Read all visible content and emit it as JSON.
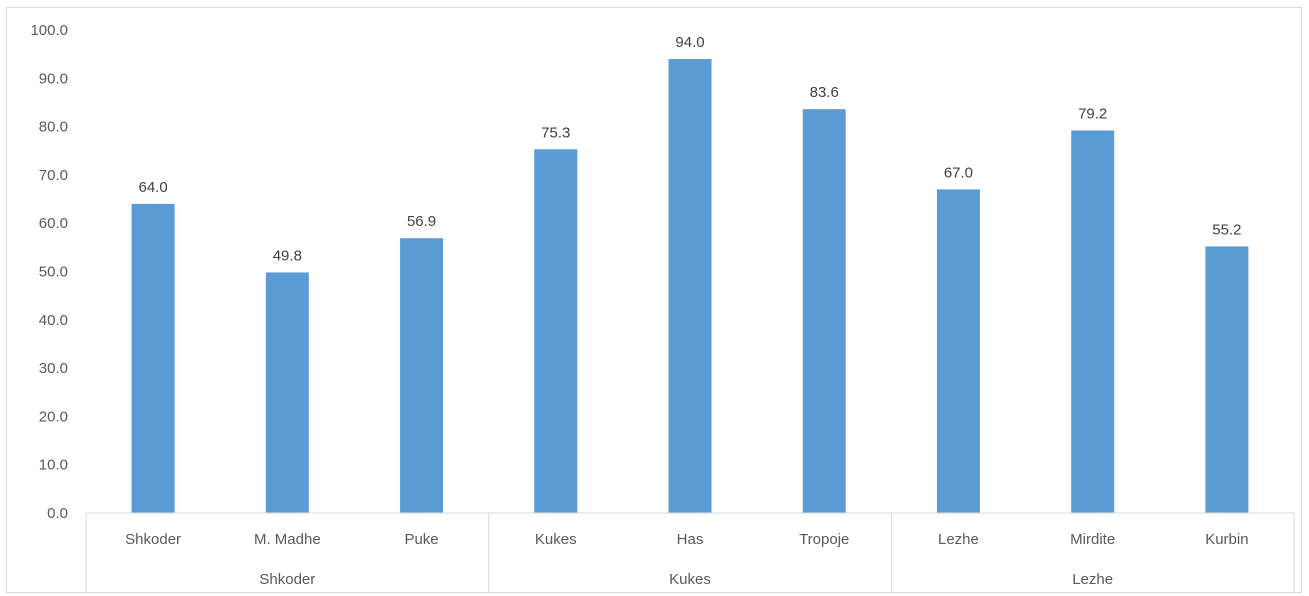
{
  "chart_data": {
    "type": "bar",
    "title": "",
    "xlabel": "",
    "ylabel": "",
    "ylim": [
      0,
      100
    ],
    "y_ticks": [
      "0.0",
      "10.0",
      "20.0",
      "30.0",
      "40.0",
      "50.0",
      "60.0",
      "70.0",
      "80.0",
      "90.0",
      "100.0"
    ],
    "categories": [
      "Shkoder",
      "M. Madhe",
      "Puke",
      "Kukes",
      "Has",
      "Tropoje",
      "Lezhe",
      "Mirdite",
      "Kurbin"
    ],
    "values": [
      64.0,
      49.8,
      56.9,
      75.3,
      94.0,
      83.6,
      67.0,
      79.2,
      55.2
    ],
    "value_labels": [
      "64.0",
      "49.8",
      "56.9",
      "75.3",
      "94.0",
      "83.6",
      "67.0",
      "79.2",
      "55.2"
    ],
    "groups": [
      {
        "label": "Shkoder",
        "count": 3
      },
      {
        "label": "Kukes",
        "count": 3
      },
      {
        "label": "Lezhe",
        "count": 3
      }
    ],
    "bar_color": "#5b9bd5",
    "grid": false,
    "legend": "none"
  }
}
